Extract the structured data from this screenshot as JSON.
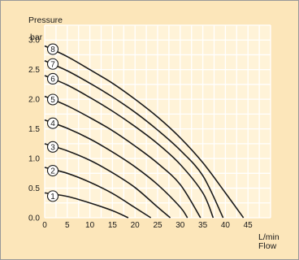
{
  "colors": {
    "page_background": "#fce6ba",
    "plot_background": "#fff3d8",
    "grid": "#ffffff",
    "curve": "#1a1a1a",
    "marker_fill": "#ffffff",
    "frame_border": "#999999"
  },
  "chart_data": {
    "type": "line",
    "ylabel": "Pressure",
    "yunit": "bar",
    "xlabel": "Flow",
    "xunit": "L/min",
    "xlim": [
      0,
      50
    ],
    "ylim": [
      0,
      3.25
    ],
    "x_ticks": [
      0,
      5,
      10,
      15,
      20,
      25,
      30,
      35,
      40,
      45
    ],
    "y_ticks": [
      "0.0",
      "0.5",
      "1.0",
      "1.5",
      "2.0",
      "2.5",
      "3.0"
    ],
    "grid": true,
    "series": [
      {
        "name": "1",
        "points": [
          [
            0,
            0.42
          ],
          [
            5,
            0.36
          ],
          [
            10,
            0.25
          ],
          [
            15,
            0.12
          ],
          [
            18.5,
            0.0
          ]
        ]
      },
      {
        "name": "2",
        "points": [
          [
            0,
            0.85
          ],
          [
            5,
            0.75
          ],
          [
            10,
            0.6
          ],
          [
            15,
            0.41
          ],
          [
            20,
            0.17
          ],
          [
            23.5,
            0.0
          ]
        ]
      },
      {
        "name": "3",
        "points": [
          [
            0,
            1.25
          ],
          [
            5,
            1.13
          ],
          [
            10,
            0.97
          ],
          [
            15,
            0.76
          ],
          [
            20,
            0.51
          ],
          [
            25,
            0.18
          ],
          [
            27.8,
            0.0
          ]
        ]
      },
      {
        "name": "4",
        "points": [
          [
            0,
            1.65
          ],
          [
            5,
            1.51
          ],
          [
            10,
            1.33
          ],
          [
            15,
            1.11
          ],
          [
            20,
            0.86
          ],
          [
            25,
            0.56
          ],
          [
            30,
            0.18
          ],
          [
            31.6,
            0.0
          ]
        ]
      },
      {
        "name": "5",
        "points": [
          [
            0,
            2.05
          ],
          [
            5,
            1.89
          ],
          [
            10,
            1.69
          ],
          [
            15,
            1.47
          ],
          [
            20,
            1.21
          ],
          [
            25,
            0.92
          ],
          [
            30,
            0.56
          ],
          [
            34.5,
            0.0
          ]
        ]
      },
      {
        "name": "6",
        "points": [
          [
            0,
            2.4
          ],
          [
            5,
            2.24
          ],
          [
            10,
            2.03
          ],
          [
            15,
            1.8
          ],
          [
            20,
            1.54
          ],
          [
            25,
            1.25
          ],
          [
            30,
            0.9
          ],
          [
            35,
            0.42
          ],
          [
            37.3,
            0.0
          ]
        ]
      },
      {
        "name": "7",
        "points": [
          [
            0,
            2.65
          ],
          [
            5,
            2.48
          ],
          [
            10,
            2.27
          ],
          [
            15,
            2.04
          ],
          [
            20,
            1.78
          ],
          [
            25,
            1.48
          ],
          [
            30,
            1.14
          ],
          [
            35,
            0.71
          ],
          [
            39.5,
            0.0
          ]
        ]
      },
      {
        "name": "8",
        "points": [
          [
            0,
            2.9
          ],
          [
            5,
            2.72
          ],
          [
            10,
            2.5
          ],
          [
            15,
            2.27
          ],
          [
            20,
            2.0
          ],
          [
            25,
            1.7
          ],
          [
            30,
            1.35
          ],
          [
            35,
            0.93
          ],
          [
            40,
            0.42
          ],
          [
            44,
            0.0
          ]
        ]
      }
    ]
  }
}
